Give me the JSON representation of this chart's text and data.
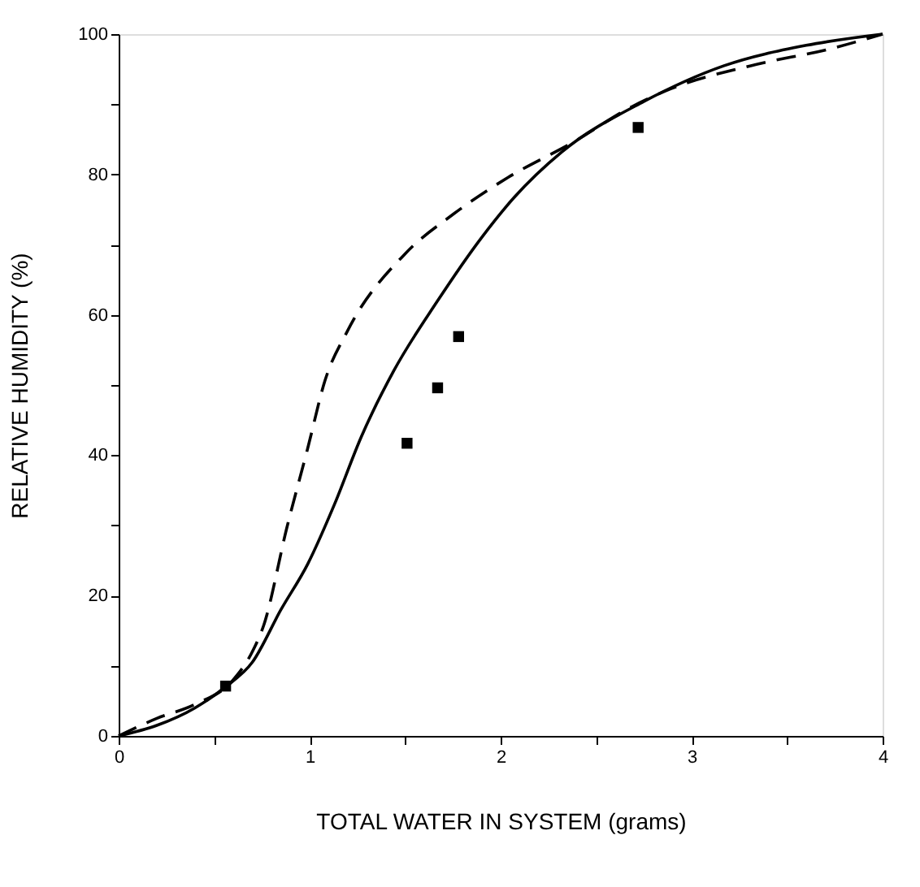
{
  "chart_data": {
    "type": "line",
    "xlabel": "TOTAL WATER IN SYSTEM (grams)",
    "ylabel": "RELATIVE HUMIDITY (%)",
    "xlim": [
      0,
      4
    ],
    "ylim": [
      0,
      100
    ],
    "xticks": [
      0,
      {
        "value": 0.5,
        "label": null
      },
      1,
      {
        "value": 1.5,
        "label": null
      },
      2,
      {
        "value": 2.5,
        "label": null
      },
      3,
      {
        "value": 3.5,
        "label": null
      },
      4
    ],
    "yticks": [
      0,
      {
        "value": 10,
        "label": null
      },
      20,
      {
        "value": 30,
        "label": null
      },
      40,
      {
        "value": 50,
        "label": null
      },
      60,
      {
        "value": 70,
        "label": null
      },
      80,
      {
        "value": 90,
        "label": null
      },
      100
    ],
    "grid": false,
    "series": [
      {
        "line_style": "solid",
        "color": "#000000",
        "marker": "none",
        "x": [
          0,
          0.2,
          0.4,
          0.56,
          0.7,
          0.85,
          0.99,
          1.13,
          1.27,
          1.44,
          1.67,
          1.9,
          2.07,
          2.32,
          2.75,
          3.17,
          3.6,
          4
        ],
        "values": [
          0,
          1.5,
          4,
          7,
          10.5,
          18,
          24.5,
          33,
          42.6,
          52,
          62,
          71,
          76.7,
          83.2,
          90.4,
          95.5,
          98.4,
          100
        ]
      },
      {
        "line_style": "dashed",
        "color": "#000000",
        "marker": "none",
        "x": [
          0,
          0.2,
          0.4,
          0.6,
          0.7,
          0.76,
          0.88,
          0.99,
          1.08,
          1.2,
          1.5,
          1.76,
          2.04,
          2.38,
          2.69,
          2.89,
          3.31,
          3.74,
          4
        ],
        "values": [
          0,
          2.5,
          4.5,
          8,
          12,
          15.8,
          29.6,
          41,
          50.6,
          57.8,
          68.7,
          74.5,
          79.6,
          84.6,
          89.7,
          92.2,
          95.5,
          98,
          100
        ]
      },
      {
        "type": "scatter",
        "color": "#000000",
        "marker": "square",
        "x": [
          0.56,
          1.51,
          1.67,
          1.78,
          2.72
        ],
        "values": [
          7.1,
          41.7,
          49.6,
          56.9,
          86.7
        ]
      }
    ]
  }
}
